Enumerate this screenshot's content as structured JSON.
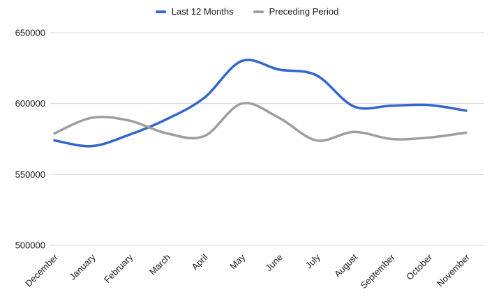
{
  "chart_data": {
    "type": "line",
    "categories": [
      "December",
      "January",
      "February",
      "March",
      "April",
      "May",
      "June",
      "July",
      "August",
      "September",
      "October",
      "November"
    ],
    "series": [
      {
        "name": "Last 12 Months",
        "color": "#3366cc",
        "values": [
          574000,
          570000,
          578000,
          589000,
          604000,
          630000,
          624000,
          620000,
          598000,
          598500,
          599000,
          595000
        ]
      },
      {
        "name": "Preceding Period",
        "color": "#9e9e9e",
        "values": [
          579000,
          590000,
          588000,
          579000,
          577000,
          600000,
          590000,
          574000,
          580000,
          575000,
          576000,
          579500
        ]
      }
    ],
    "title": "",
    "xlabel": "",
    "ylabel": "",
    "ylim": [
      500000,
      650000
    ],
    "yticks": [
      500000,
      550000,
      600000,
      650000
    ],
    "grid": true,
    "legend_position": "top",
    "gridline_color": "#d9d9d9",
    "text_color": "#1a1a1a"
  }
}
